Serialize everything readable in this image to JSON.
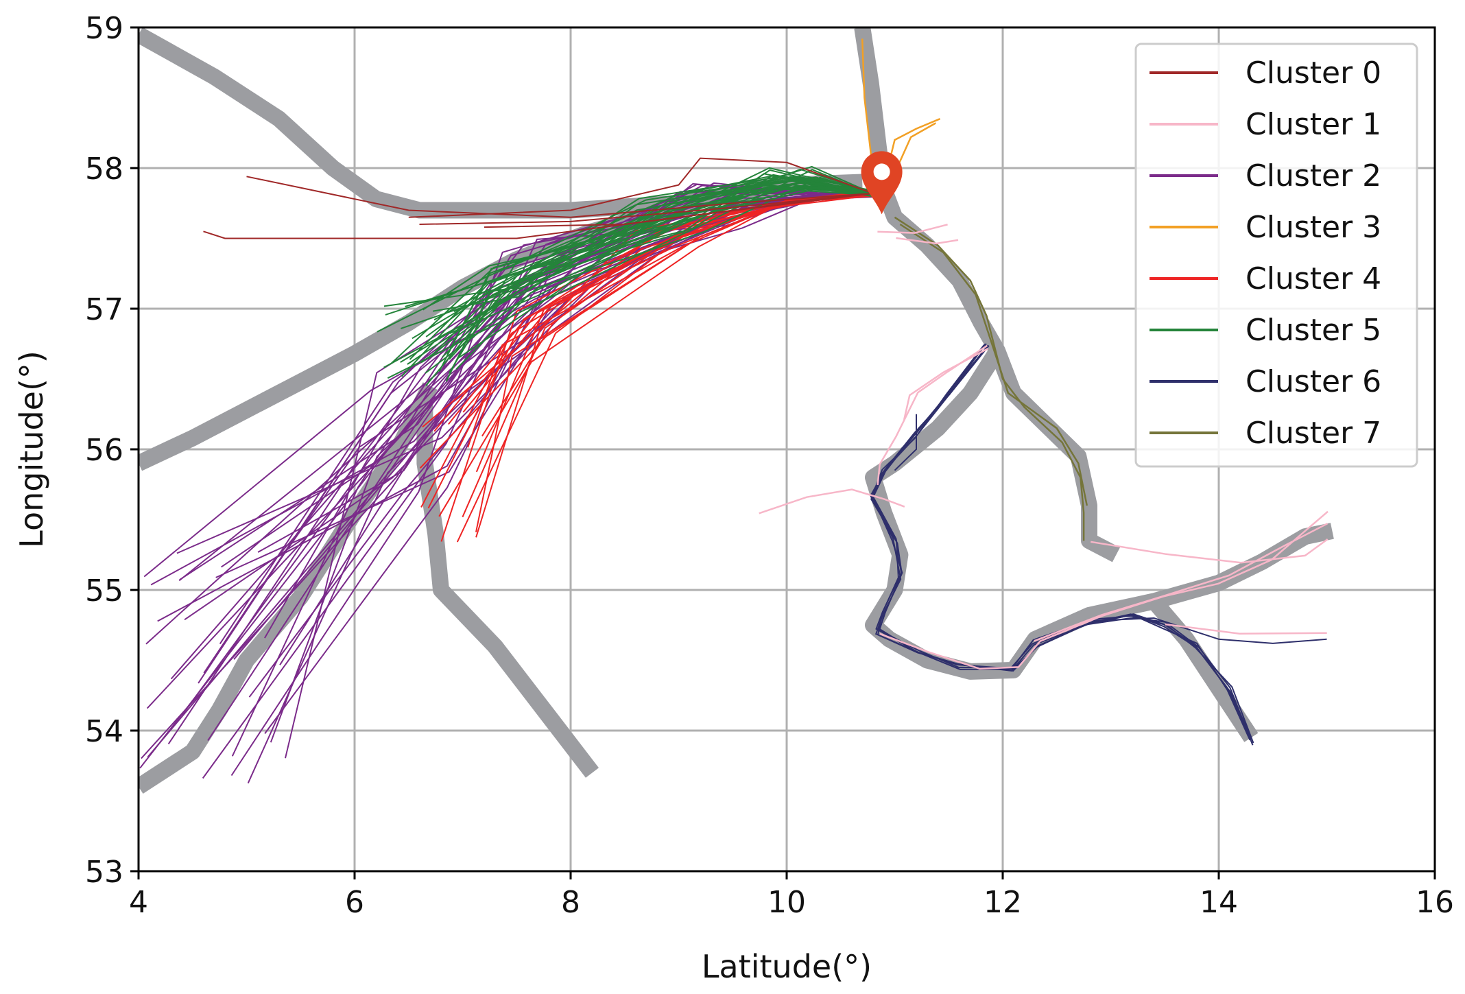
{
  "chart_data": {
    "type": "line",
    "title": "",
    "xlabel": "Latitude(°)",
    "ylabel": "Longitude(°)",
    "xlim": [
      4,
      16
    ],
    "ylim": [
      53,
      59
    ],
    "xticks": [
      "4",
      "6",
      "8",
      "10",
      "12",
      "14",
      "16"
    ],
    "yticks": [
      "53",
      "54",
      "55",
      "56",
      "57",
      "58",
      "59"
    ],
    "grid": true,
    "legend_position": "top-right",
    "series": [
      {
        "name": "Cluster 0",
        "color": "#a02828"
      },
      {
        "name": "Cluster 1",
        "color": "#f7b6c8"
      },
      {
        "name": "Cluster 2",
        "color": "#7b2b8a"
      },
      {
        "name": "Cluster 3",
        "color": "#f2a025"
      },
      {
        "name": "Cluster 4",
        "color": "#ee2424"
      },
      {
        "name": "Cluster 5",
        "color": "#24843a"
      },
      {
        "name": "Cluster 6",
        "color": "#2e2f6b"
      },
      {
        "name": "Cluster 7",
        "color": "#75753a"
      }
    ],
    "shipping_lanes": [
      [
        [
          4.0,
          58.95
        ],
        [
          4.7,
          58.65
        ],
        [
          5.3,
          58.35
        ],
        [
          5.8,
          58.0
        ],
        [
          6.2,
          57.78
        ],
        [
          6.6,
          57.7
        ],
        [
          8.0,
          57.7
        ],
        [
          9.0,
          57.75
        ],
        [
          10.0,
          57.88
        ],
        [
          10.7,
          57.9
        ]
      ],
      [
        [
          4.0,
          55.9
        ],
        [
          4.5,
          56.08
        ],
        [
          5.0,
          56.28
        ],
        [
          5.5,
          56.48
        ],
        [
          6.0,
          56.68
        ],
        [
          6.5,
          56.9
        ],
        [
          7.0,
          57.15
        ],
        [
          7.5,
          57.35
        ],
        [
          8.2,
          57.55
        ],
        [
          9.0,
          57.72
        ]
      ],
      [
        [
          10.7,
          59.0
        ],
        [
          10.78,
          58.6
        ],
        [
          10.85,
          58.15
        ],
        [
          10.9,
          57.85
        ],
        [
          11.0,
          57.65
        ],
        [
          11.3,
          57.45
        ],
        [
          11.6,
          57.2
        ],
        [
          11.8,
          56.9
        ],
        [
          11.95,
          56.7
        ],
        [
          12.1,
          56.4
        ],
        [
          12.5,
          56.1
        ],
        [
          12.7,
          55.95
        ],
        [
          12.8,
          55.6
        ],
        [
          12.8,
          55.35
        ],
        [
          13.05,
          55.25
        ]
      ],
      [
        [
          11.95,
          56.7
        ],
        [
          11.7,
          56.4
        ],
        [
          11.4,
          56.15
        ],
        [
          11.0,
          55.9
        ],
        [
          10.8,
          55.8
        ],
        [
          10.9,
          55.55
        ],
        [
          11.05,
          55.25
        ],
        [
          11.0,
          55.0
        ],
        [
          10.8,
          54.75
        ],
        [
          10.95,
          54.65
        ],
        [
          11.3,
          54.5
        ],
        [
          11.7,
          54.42
        ],
        [
          12.1,
          54.43
        ],
        [
          12.3,
          54.65
        ],
        [
          12.8,
          54.82
        ],
        [
          13.4,
          54.92
        ],
        [
          14.0,
          55.05
        ],
        [
          14.4,
          55.2
        ],
        [
          14.8,
          55.38
        ],
        [
          15.05,
          55.42
        ]
      ],
      [
        [
          13.4,
          54.92
        ],
        [
          13.7,
          54.65
        ],
        [
          14.0,
          54.3
        ],
        [
          14.3,
          53.95
        ]
      ],
      [
        [
          6.65,
          56.35
        ],
        [
          6.65,
          55.9
        ],
        [
          6.75,
          55.4
        ],
        [
          6.8,
          55.0
        ],
        [
          7.3,
          54.6
        ],
        [
          7.8,
          54.1
        ],
        [
          8.2,
          53.7
        ]
      ],
      [
        [
          4.0,
          53.6
        ],
        [
          4.5,
          53.85
        ],
        [
          4.75,
          54.15
        ],
        [
          5.0,
          54.5
        ],
        [
          5.5,
          54.95
        ],
        [
          6.0,
          55.55
        ],
        [
          6.4,
          56.0
        ],
        [
          6.7,
          56.45
        ]
      ]
    ],
    "port_marker": {
      "label": "port",
      "x": 10.88,
      "y": 57.72,
      "color": "#e04424"
    }
  }
}
